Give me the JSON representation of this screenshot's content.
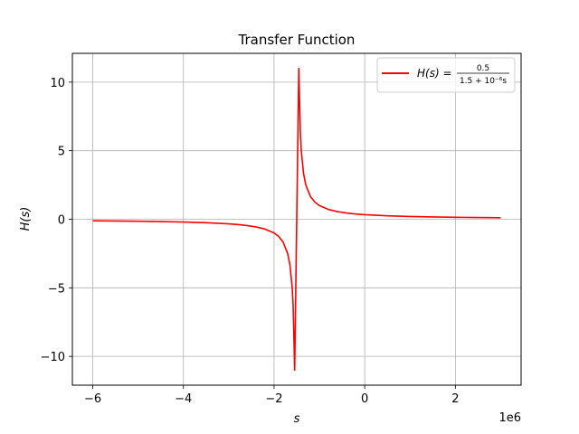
{
  "chart_data": {
    "type": "line",
    "title": "Transfer Function",
    "xlabel": "s",
    "ylabel": "H(s)",
    "x_offset_label": "1e6",
    "xlim": [
      -6.45,
      3.45
    ],
    "ylim": [
      -12.1,
      12.1
    ],
    "xticks": [
      -6,
      -4,
      -2,
      0,
      2
    ],
    "xtick_labels": [
      "−6",
      "−4",
      "−2",
      "0",
      "2"
    ],
    "yticks": [
      -10,
      -5,
      0,
      5,
      10
    ],
    "ytick_labels": [
      "−10",
      "−5",
      "0",
      "5",
      "10"
    ],
    "grid": true,
    "legend_position": "top-right",
    "series": [
      {
        "name": "H(s) = 0.5 / (1.5 + 10⁻⁶s)",
        "legend": {
          "lhs": "H(s) =",
          "numerator": "0.5",
          "denominator": "1.5 + 10⁻⁶s"
        },
        "color": "#ff0000",
        "x": [
          -6.0,
          -5.5,
          -5.0,
          -4.5,
          -4.0,
          -3.5,
          -3.0,
          -2.8,
          -2.6,
          -2.4,
          -2.2,
          -2.0,
          -1.9,
          -1.8,
          -1.7,
          -1.65,
          -1.6,
          -1.58,
          -1.5455,
          -1.4545,
          -1.42,
          -1.4,
          -1.35,
          -1.3,
          -1.2,
          -1.1,
          -1.0,
          -0.8,
          -0.6,
          -0.4,
          -0.2,
          0.0,
          0.5,
          1.0,
          1.5,
          2.0,
          2.5,
          3.0
        ],
        "y": [
          -0.111,
          -0.125,
          -0.143,
          -0.167,
          -0.2,
          -0.25,
          -0.333,
          -0.385,
          -0.455,
          -0.556,
          -0.714,
          -1.0,
          -1.25,
          -1.667,
          -2.5,
          -3.333,
          -5.0,
          -6.25,
          -11.0,
          11.0,
          6.25,
          5.0,
          3.333,
          2.5,
          1.667,
          1.25,
          1.0,
          0.714,
          0.556,
          0.455,
          0.385,
          0.333,
          0.25,
          0.2,
          0.167,
          0.143,
          0.125,
          0.111
        ]
      }
    ]
  }
}
